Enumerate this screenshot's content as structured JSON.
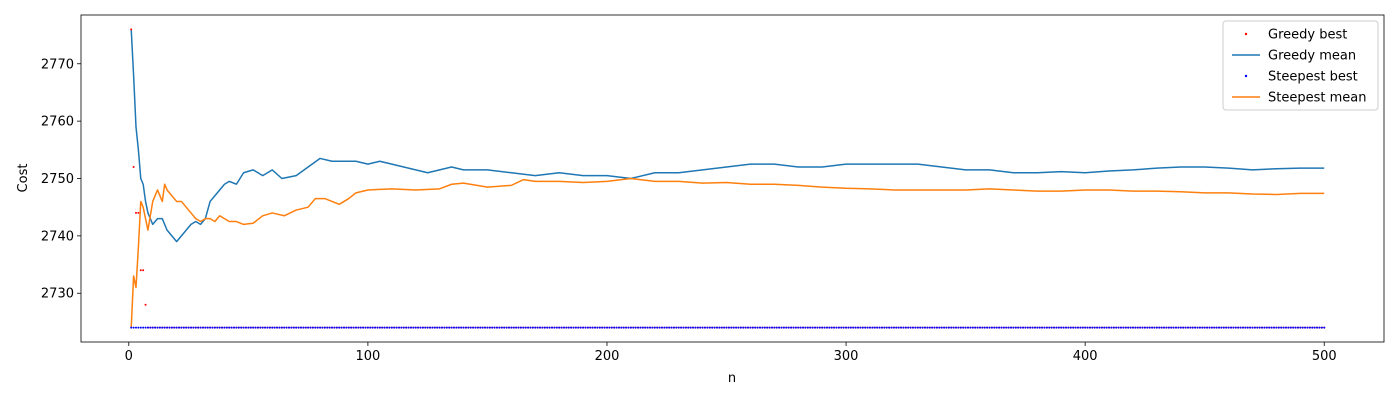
{
  "chart_data": {
    "type": "line",
    "title": "",
    "xlabel": "n",
    "ylabel": "Cost",
    "xlim": [
      -20,
      525
    ],
    "ylim": [
      2721.5,
      2778.5
    ],
    "xticks": [
      0,
      100,
      200,
      300,
      400,
      500
    ],
    "yticks": [
      2730,
      2740,
      2750,
      2760,
      2770
    ],
    "grid": false,
    "legend": "top-right",
    "series": [
      {
        "name": "Greedy best",
        "kind": "points",
        "color": "#ff0000",
        "points": [
          [
            1,
            2776
          ],
          [
            2,
            2752
          ],
          [
            3,
            2744
          ],
          [
            4,
            2744
          ],
          [
            5,
            2734
          ],
          [
            6,
            2734
          ],
          [
            7,
            2728
          ],
          [
            8,
            2724
          ],
          [
            500,
            2724
          ]
        ]
      },
      {
        "name": "Greedy mean",
        "kind": "line",
        "color": "#1f77b4",
        "points": [
          [
            1,
            2776
          ],
          [
            2,
            2768
          ],
          [
            3,
            2759
          ],
          [
            4,
            2755
          ],
          [
            5,
            2750
          ],
          [
            6,
            2749
          ],
          [
            7,
            2746
          ],
          [
            8,
            2744
          ],
          [
            10,
            2742
          ],
          [
            12,
            2743
          ],
          [
            14,
            2743
          ],
          [
            16,
            2741
          ],
          [
            18,
            2740
          ],
          [
            20,
            2739
          ],
          [
            22,
            2740
          ],
          [
            24,
            2741
          ],
          [
            26,
            2742
          ],
          [
            28,
            2742.5
          ],
          [
            30,
            2742
          ],
          [
            32,
            2743
          ],
          [
            34,
            2746
          ],
          [
            36,
            2747
          ],
          [
            38,
            2748
          ],
          [
            40,
            2749
          ],
          [
            42,
            2749.5
          ],
          [
            45,
            2749
          ],
          [
            48,
            2751
          ],
          [
            52,
            2751.5
          ],
          [
            56,
            2750.5
          ],
          [
            60,
            2751.5
          ],
          [
            64,
            2750
          ],
          [
            70,
            2750.5
          ],
          [
            75,
            2752
          ],
          [
            80,
            2753.5
          ],
          [
            85,
            2753
          ],
          [
            90,
            2753
          ],
          [
            95,
            2753
          ],
          [
            100,
            2752.5
          ],
          [
            105,
            2753
          ],
          [
            110,
            2752.5
          ],
          [
            115,
            2752
          ],
          [
            120,
            2751.5
          ],
          [
            125,
            2751
          ],
          [
            130,
            2751.5
          ],
          [
            135,
            2752
          ],
          [
            140,
            2751.5
          ],
          [
            150,
            2751.5
          ],
          [
            160,
            2751
          ],
          [
            170,
            2750.5
          ],
          [
            180,
            2751
          ],
          [
            190,
            2750.5
          ],
          [
            200,
            2750.5
          ],
          [
            210,
            2750
          ],
          [
            220,
            2751
          ],
          [
            230,
            2751
          ],
          [
            240,
            2751.5
          ],
          [
            250,
            2752
          ],
          [
            260,
            2752.5
          ],
          [
            270,
            2752.5
          ],
          [
            280,
            2752
          ],
          [
            290,
            2752
          ],
          [
            300,
            2752.5
          ],
          [
            310,
            2752.5
          ],
          [
            320,
            2752.5
          ],
          [
            330,
            2752.5
          ],
          [
            340,
            2752
          ],
          [
            350,
            2751.5
          ],
          [
            360,
            2751.5
          ],
          [
            370,
            2751
          ],
          [
            380,
            2751
          ],
          [
            390,
            2751.2
          ],
          [
            400,
            2751
          ],
          [
            410,
            2751.3
          ],
          [
            420,
            2751.5
          ],
          [
            430,
            2751.8
          ],
          [
            440,
            2752
          ],
          [
            450,
            2752
          ],
          [
            460,
            2751.8
          ],
          [
            470,
            2751.5
          ],
          [
            480,
            2751.7
          ],
          [
            490,
            2751.8
          ],
          [
            500,
            2751.8
          ]
        ]
      },
      {
        "name": "Steepest best",
        "kind": "points",
        "color": "#0000ff",
        "points": [
          [
            1,
            2724
          ],
          [
            500,
            2724
          ]
        ]
      },
      {
        "name": "Steepest mean",
        "kind": "line",
        "color": "#ff7f0e",
        "points": [
          [
            1,
            2724
          ],
          [
            2,
            2733
          ],
          [
            3,
            2731
          ],
          [
            4,
            2738
          ],
          [
            5,
            2746
          ],
          [
            6,
            2745
          ],
          [
            7,
            2743
          ],
          [
            8,
            2741
          ],
          [
            10,
            2746
          ],
          [
            12,
            2748
          ],
          [
            14,
            2746
          ],
          [
            15,
            2749
          ],
          [
            16,
            2748
          ],
          [
            18,
            2747
          ],
          [
            20,
            2746
          ],
          [
            22,
            2746
          ],
          [
            24,
            2745
          ],
          [
            26,
            2744
          ],
          [
            28,
            2743
          ],
          [
            30,
            2742.5
          ],
          [
            32,
            2743
          ],
          [
            34,
            2743
          ],
          [
            36,
            2742.5
          ],
          [
            38,
            2743.5
          ],
          [
            40,
            2743
          ],
          [
            42,
            2742.5
          ],
          [
            45,
            2742.5
          ],
          [
            48,
            2742
          ],
          [
            52,
            2742.2
          ],
          [
            56,
            2743.5
          ],
          [
            60,
            2744
          ],
          [
            65,
            2743.5
          ],
          [
            70,
            2744.5
          ],
          [
            75,
            2745
          ],
          [
            78,
            2746.5
          ],
          [
            82,
            2746.5
          ],
          [
            88,
            2745.5
          ],
          [
            92,
            2746.5
          ],
          [
            95,
            2747.5
          ],
          [
            100,
            2748
          ],
          [
            110,
            2748.2
          ],
          [
            120,
            2748
          ],
          [
            130,
            2748.2
          ],
          [
            135,
            2749
          ],
          [
            140,
            2749.2
          ],
          [
            150,
            2748.5
          ],
          [
            160,
            2748.8
          ],
          [
            165,
            2749.8
          ],
          [
            170,
            2749.5
          ],
          [
            180,
            2749.5
          ],
          [
            190,
            2749.3
          ],
          [
            200,
            2749.5
          ],
          [
            210,
            2750
          ],
          [
            220,
            2749.5
          ],
          [
            230,
            2749.5
          ],
          [
            240,
            2749.2
          ],
          [
            250,
            2749.3
          ],
          [
            260,
            2749
          ],
          [
            270,
            2749
          ],
          [
            280,
            2748.8
          ],
          [
            290,
            2748.5
          ],
          [
            300,
            2748.3
          ],
          [
            310,
            2748.2
          ],
          [
            320,
            2748
          ],
          [
            330,
            2748
          ],
          [
            340,
            2748
          ],
          [
            350,
            2748
          ],
          [
            360,
            2748.2
          ],
          [
            370,
            2748
          ],
          [
            380,
            2747.8
          ],
          [
            390,
            2747.8
          ],
          [
            400,
            2748
          ],
          [
            410,
            2748
          ],
          [
            420,
            2747.8
          ],
          [
            430,
            2747.8
          ],
          [
            440,
            2747.7
          ],
          [
            450,
            2747.5
          ],
          [
            460,
            2747.5
          ],
          [
            470,
            2747.3
          ],
          [
            480,
            2747.2
          ],
          [
            490,
            2747.4
          ],
          [
            500,
            2747.4
          ]
        ]
      }
    ]
  }
}
